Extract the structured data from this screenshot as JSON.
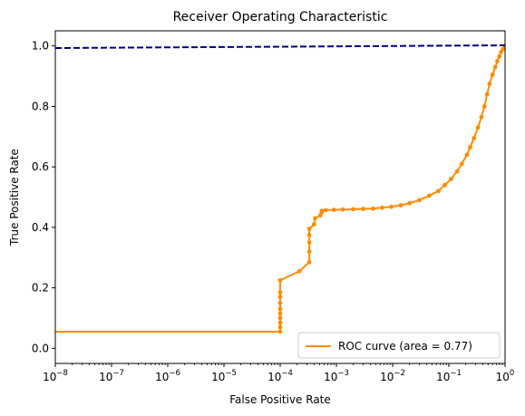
{
  "chart_data": {
    "type": "line",
    "title": "Receiver Operating Characteristic",
    "xlabel": "False Positive Rate",
    "ylabel": "True Positive Rate",
    "xscale": "log",
    "xlim": [
      1e-08,
      1
    ],
    "ylim": [
      -0.05,
      1.05
    ],
    "x_ticks": [
      {
        "value": 1e-08,
        "base": "10",
        "exp": "−8"
      },
      {
        "value": 1e-07,
        "base": "10",
        "exp": "−7"
      },
      {
        "value": 1e-06,
        "base": "10",
        "exp": "−6"
      },
      {
        "value": 1e-05,
        "base": "10",
        "exp": "−5"
      },
      {
        "value": 0.0001,
        "base": "10",
        "exp": "−4"
      },
      {
        "value": 0.001,
        "base": "10",
        "exp": "−3"
      },
      {
        "value": 0.01,
        "base": "10",
        "exp": "−2"
      },
      {
        "value": 0.1,
        "base": "10",
        "exp": "−1"
      },
      {
        "value": 1,
        "base": "10",
        "exp": "0"
      }
    ],
    "y_ticks": [
      {
        "value": 0.0,
        "label": "0.0"
      },
      {
        "value": 0.2,
        "label": "0.2"
      },
      {
        "value": 0.4,
        "label": "0.4"
      },
      {
        "value": 0.6,
        "label": "0.6"
      },
      {
        "value": 0.8,
        "label": "0.8"
      },
      {
        "value": 1.0,
        "label": "1.0"
      }
    ],
    "grid": false,
    "legend": {
      "placement": "lower-right"
    },
    "series": [
      {
        "name": "ROC curve (area = 0.77)",
        "color": "#ff8c00",
        "style": "solid-with-markers",
        "points": [
          [
            1e-08,
            0.055
          ],
          [
            0.0001,
            0.055
          ],
          [
            0.0001,
            0.07
          ],
          [
            0.0001,
            0.085
          ],
          [
            0.0001,
            0.1
          ],
          [
            0.0001,
            0.115
          ],
          [
            0.0001,
            0.13
          ],
          [
            0.0001,
            0.15
          ],
          [
            0.0001,
            0.17
          ],
          [
            0.0001,
            0.185
          ],
          [
            0.0001,
            0.225
          ],
          [
            0.00022,
            0.255
          ],
          [
            0.00033,
            0.285
          ],
          [
            0.00033,
            0.32
          ],
          [
            0.00033,
            0.35
          ],
          [
            0.00033,
            0.375
          ],
          [
            0.00033,
            0.395
          ],
          [
            0.0004,
            0.41
          ],
          [
            0.00042,
            0.43
          ],
          [
            0.00052,
            0.44
          ],
          [
            0.00055,
            0.45
          ],
          [
            0.00055,
            0.455
          ],
          [
            0.00065,
            0.457
          ],
          [
            0.0009,
            0.458
          ],
          [
            0.0013,
            0.459
          ],
          [
            0.002,
            0.46
          ],
          [
            0.003,
            0.461
          ],
          [
            0.0045,
            0.462
          ],
          [
            0.0065,
            0.465
          ],
          [
            0.0095,
            0.468
          ],
          [
            0.014,
            0.473
          ],
          [
            0.02,
            0.48
          ],
          [
            0.03,
            0.49
          ],
          [
            0.045,
            0.505
          ],
          [
            0.065,
            0.52
          ],
          [
            0.085,
            0.54
          ],
          [
            0.11,
            0.56
          ],
          [
            0.14,
            0.585
          ],
          [
            0.17,
            0.61
          ],
          [
            0.21,
            0.64
          ],
          [
            0.24,
            0.665
          ],
          [
            0.28,
            0.695
          ],
          [
            0.33,
            0.73
          ],
          [
            0.38,
            0.765
          ],
          [
            0.43,
            0.8
          ],
          [
            0.48,
            0.84
          ],
          [
            0.53,
            0.875
          ],
          [
            0.6,
            0.905
          ],
          [
            0.67,
            0.93
          ],
          [
            0.73,
            0.95
          ],
          [
            0.79,
            0.965
          ],
          [
            0.85,
            0.98
          ],
          [
            0.92,
            0.99
          ],
          [
            1.0,
            1.0
          ]
        ]
      },
      {
        "name": "",
        "color": "#000080",
        "style": "dashed",
        "points": [
          [
            1e-08,
            0.993
          ],
          [
            1.0,
            1.002
          ]
        ]
      }
    ]
  }
}
